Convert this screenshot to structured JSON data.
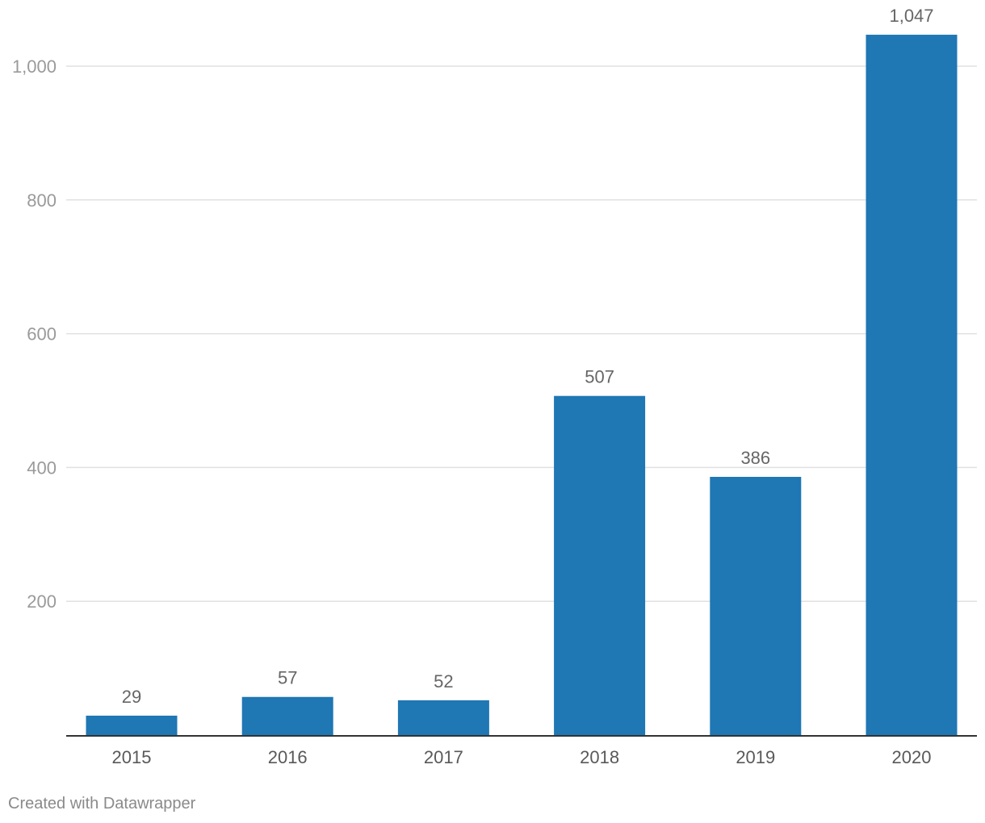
{
  "chart_data": {
    "type": "bar",
    "categories": [
      "2015",
      "2016",
      "2017",
      "2018",
      "2019",
      "2020"
    ],
    "values": [
      29,
      57,
      52,
      507,
      386,
      1047
    ],
    "value_labels": [
      "29",
      "57",
      "52",
      "507",
      "386",
      "1,047"
    ],
    "ylim": [
      0,
      1100
    ],
    "yticks": [
      200,
      400,
      600,
      800,
      1000
    ],
    "ytick_labels": [
      "200",
      "400",
      "600",
      "800",
      "1,000"
    ],
    "grid": true,
    "legend": "none",
    "bar_color": "#1f77b4"
  },
  "footer": {
    "credit": "Created with Datawrapper"
  }
}
